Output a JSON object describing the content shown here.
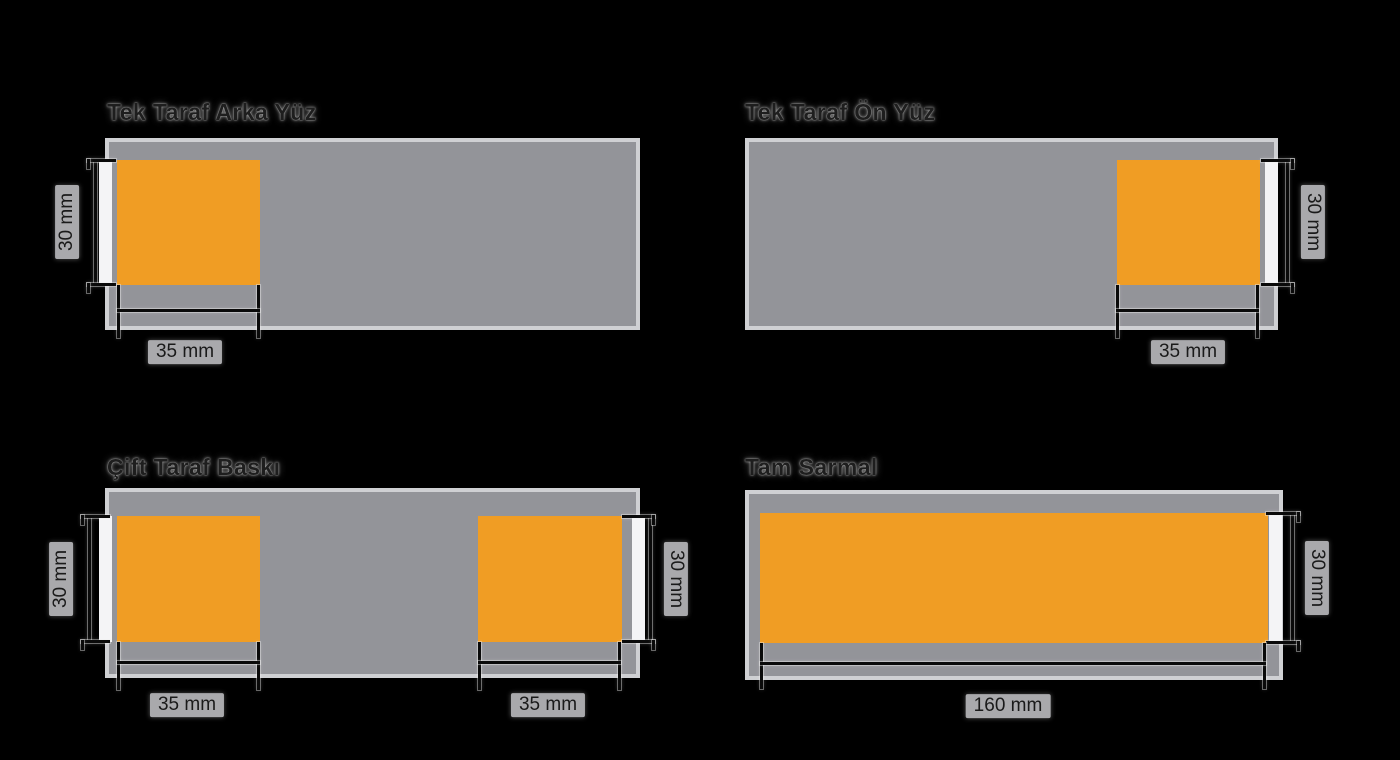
{
  "colors": {
    "background": "#000000",
    "body_gray": "#939499",
    "body_border": "#cfd0d3",
    "print_orange": "#f09d24",
    "strip_white": "#f4f4f6",
    "dim_line": "#0a0a0a",
    "label_bg": "#a9a9ac",
    "label_text": "#1a1a1a",
    "title_text": "#1e1e1e"
  },
  "diagrams": {
    "d1": {
      "title": "Tek Taraf Arka Yüz",
      "height_label": "30 mm",
      "width_label": "35 mm"
    },
    "d2": {
      "title": "Tek Taraf Ön Yüz",
      "height_label": "30 mm",
      "width_label": "35 mm"
    },
    "d3": {
      "title": "Çift Taraf Baskı",
      "height_label_left": "30 mm",
      "height_label_right": "30 mm",
      "width_label_left": "35 mm",
      "width_label_right": "35 mm"
    },
    "d4": {
      "title": "Tam Sarmal",
      "height_label": "30 mm",
      "width_label": "160 mm"
    }
  }
}
